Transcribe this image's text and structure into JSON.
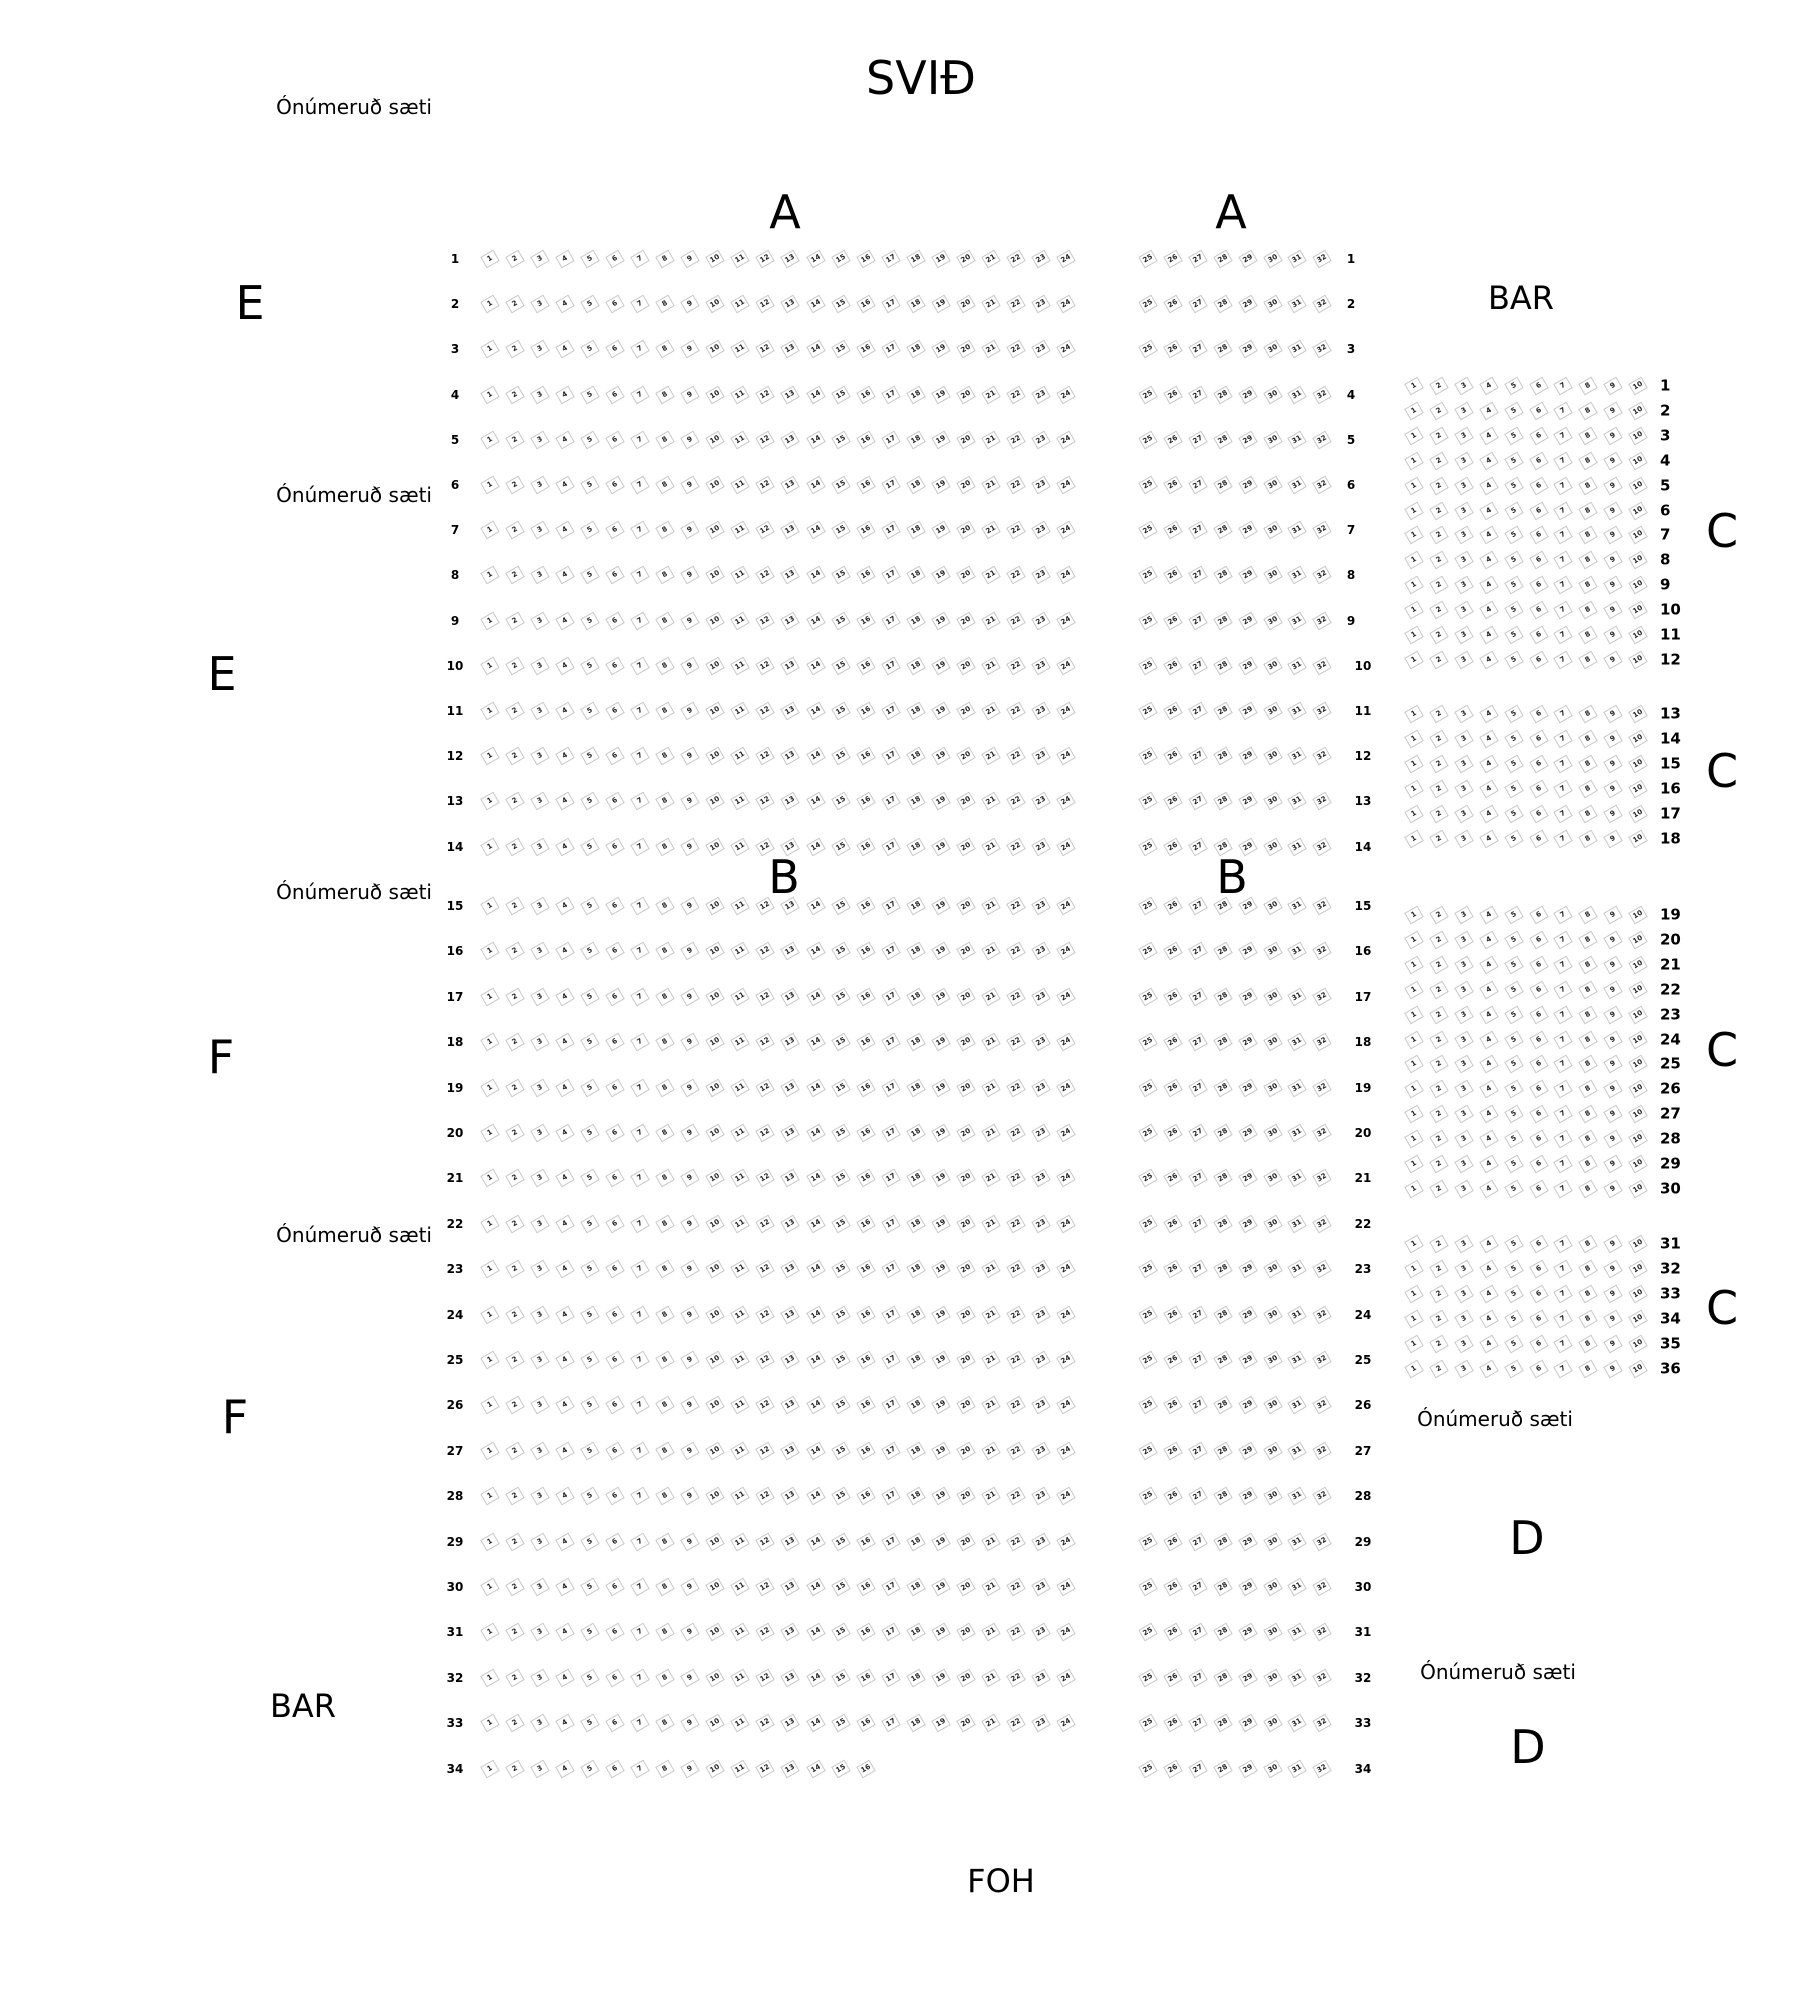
{
  "labels": {
    "stage": "SVIÐ",
    "foh": "FOH",
    "unnumbered": "Ónúmeruð sæti",
    "bar": "BAR",
    "section_a": "A",
    "section_b": "B",
    "section_c": "C",
    "section_d": "D",
    "section_e": "E",
    "section_f": "F"
  },
  "main_left": {
    "rows_from": 1,
    "rows_to": 34,
    "seat_from": 1,
    "seat_to": 24,
    "exceptions": [
      {
        "row": 34,
        "seat_to": 16
      }
    ]
  },
  "main_right": {
    "rows_from": 1,
    "rows_to": 34,
    "seat_from": 25,
    "seat_to": 32
  },
  "section_c": {
    "seat_from": 1,
    "seat_to": 10,
    "groups": [
      {
        "rows_from": 1,
        "rows_to": 12
      },
      {
        "rows_from": 13,
        "rows_to": 18
      },
      {
        "rows_from": 19,
        "rows_to": 30
      },
      {
        "rows_from": 31,
        "rows_to": 36
      }
    ]
  },
  "colors": {
    "seat_border": "#c8c8c8",
    "text": "#000000"
  }
}
